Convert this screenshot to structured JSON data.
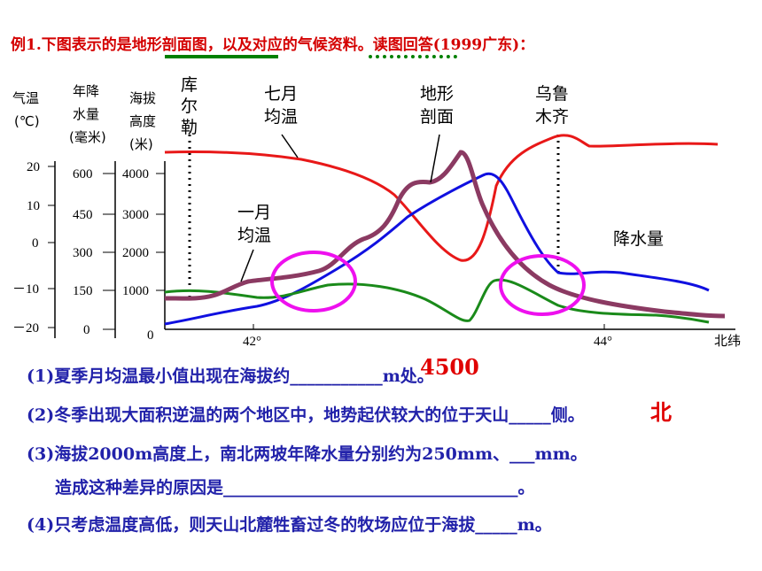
{
  "title": "例1.下图表示的是地形剖面图，以及对应的气候资料。读图回答(1999广东)：",
  "axes": {
    "temp_label_1": "气温",
    "temp_label_2": "(℃)",
    "precip_label_1": "年降",
    "precip_label_2": "水量",
    "precip_label_3": "(毫米)",
    "elev_label_1": "海拔",
    "elev_label_2": "高度",
    "elev_label_3": "(米)",
    "temp_ticks": [
      "20",
      "10",
      "0",
      "－10",
      "－20"
    ],
    "precip_ticks": [
      "600",
      "450",
      "300",
      "150",
      "0"
    ],
    "elev_ticks": [
      "4000",
      "3000",
      "2000",
      "1000",
      "0"
    ],
    "x_ticks": [
      "42°",
      "44°"
    ],
    "x_unit": "北纬"
  },
  "labels": {
    "kuerle": [
      "库",
      "尔",
      "勒"
    ],
    "july_temp": [
      "七月",
      "均温"
    ],
    "terrain": [
      "地形",
      "剖面"
    ],
    "urumqi": [
      "乌鲁",
      "木齐"
    ],
    "jan_temp": [
      "一月",
      "均温"
    ],
    "precip": "降水量"
  },
  "colors": {
    "july_temp": "#e81818",
    "precip": "#1010e0",
    "jan_temp": "#1a8a1a",
    "terrain": "#8b3a62",
    "highlight": "#ee10ee",
    "question": "#2222aa",
    "answer": "#e00000",
    "title": "#d40000"
  },
  "questions": [
    "(1)夏季月均温最小值出现在海拔约___________m处。",
    "(2)冬季出现大面积逆温的两个地区中，地势起伏较大的位于天山_____侧。",
    "(3)海拔2000m高度上，南北两坡年降水量分别约为250mm、___mm。",
    "造成这种差异的原因是___________________________________。",
    "(4)只考虑温度高低，则天山北麓牲畜过冬的牧场应位于海拔_____m。"
  ],
  "answers": {
    "q1": "4500",
    "q2": "北"
  }
}
